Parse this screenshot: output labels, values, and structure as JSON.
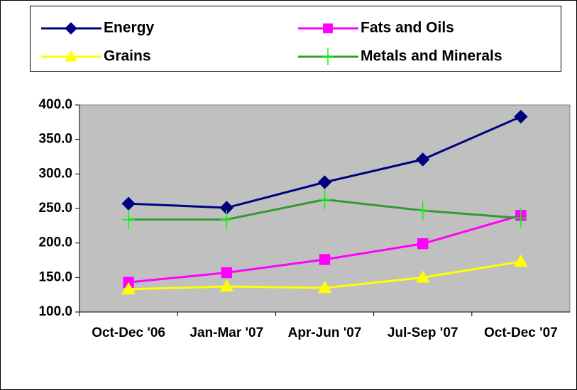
{
  "chart_data": {
    "type": "line",
    "categories": [
      "Oct-Dec '06",
      "Jan-Mar '07",
      "Apr-Jun '07",
      "Jul-Sep '07",
      "Oct-Dec '07"
    ],
    "series": [
      {
        "name": "Energy",
        "color": "#000080",
        "marker": "diamond",
        "values": [
          257,
          251,
          288,
          321,
          383
        ]
      },
      {
        "name": "Fats and Oils",
        "color": "#ff00ff",
        "marker": "square",
        "values": [
          143,
          157,
          176,
          199,
          240
        ]
      },
      {
        "name": "Grains",
        "color": "#ffff00",
        "marker": "triangle",
        "values": [
          133,
          137,
          135,
          150,
          173
        ]
      },
      {
        "name": "Metals and Minerals",
        "color": "#339933",
        "marker": "plus",
        "values": [
          234,
          234,
          263,
          247,
          236
        ]
      }
    ],
    "ylim": [
      100,
      400
    ],
    "yticks": [
      {
        "value": 100,
        "label": "100.0"
      },
      {
        "value": 150,
        "label": "150.0"
      },
      {
        "value": 200,
        "label": "200.0"
      },
      {
        "value": 250,
        "label": "250.0"
      },
      {
        "value": 300,
        "label": "300.0"
      },
      {
        "value": 350,
        "label": "350.0"
      },
      {
        "value": 400,
        "label": "400.0"
      }
    ],
    "grid": false,
    "legend": "top",
    "plot_background": "#c0c0c0"
  }
}
